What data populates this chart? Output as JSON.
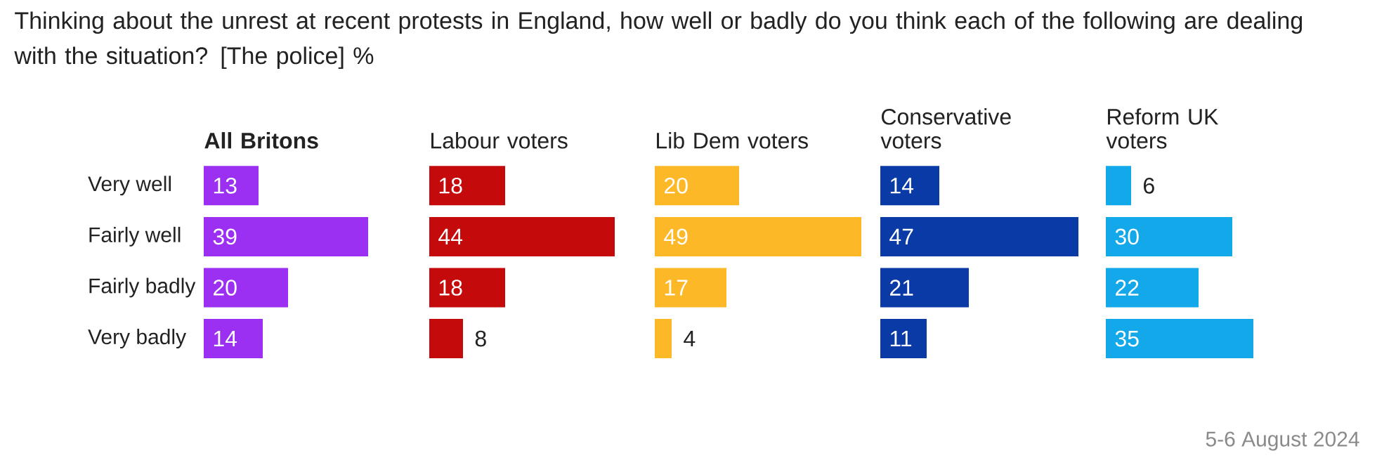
{
  "chart_data": [
    {
      "type": "bar",
      "orientation": "horizontal",
      "title": "All Britons",
      "categories": [
        "Very well",
        "Fairly well",
        "Fairly badly",
        "Very badly"
      ],
      "values": [
        13,
        39,
        20,
        14
      ],
      "color": "#9b30f2",
      "data_labels": true,
      "tick_labels": "y",
      "annotations": [
        "Thinking about the unrest at recent protests in England, how well or badly do you think each of the following are dealing with the situation? [The police] %"
      ]
    },
    {
      "type": "bar",
      "orientation": "horizontal",
      "title": "Labour voters",
      "values": [
        18,
        44,
        18,
        8
      ],
      "color": "#c40a0a",
      "data_labels": true,
      "tick_labels": false
    },
    {
      "type": "bar",
      "orientation": "horizontal",
      "title": "Lib Dem voters",
      "values": [
        20,
        49,
        17,
        4
      ],
      "color": "#fdb827",
      "data_labels": true,
      "tick_labels": false
    },
    {
      "type": "bar",
      "orientation": "horizontal",
      "title": "Conservative voters",
      "values": [
        14,
        47,
        21,
        11
      ],
      "color": "#0a3aa6",
      "data_labels": true,
      "tick_labels": false
    },
    {
      "type": "bar",
      "orientation": "horizontal",
      "title": "Reform UK voters",
      "values": [
        6,
        30,
        22,
        35
      ],
      "color": "#12a8ea",
      "data_labels": true,
      "tick_labels": false,
      "annotations": [
        "5-6 August 2024"
      ]
    }
  ]
}
